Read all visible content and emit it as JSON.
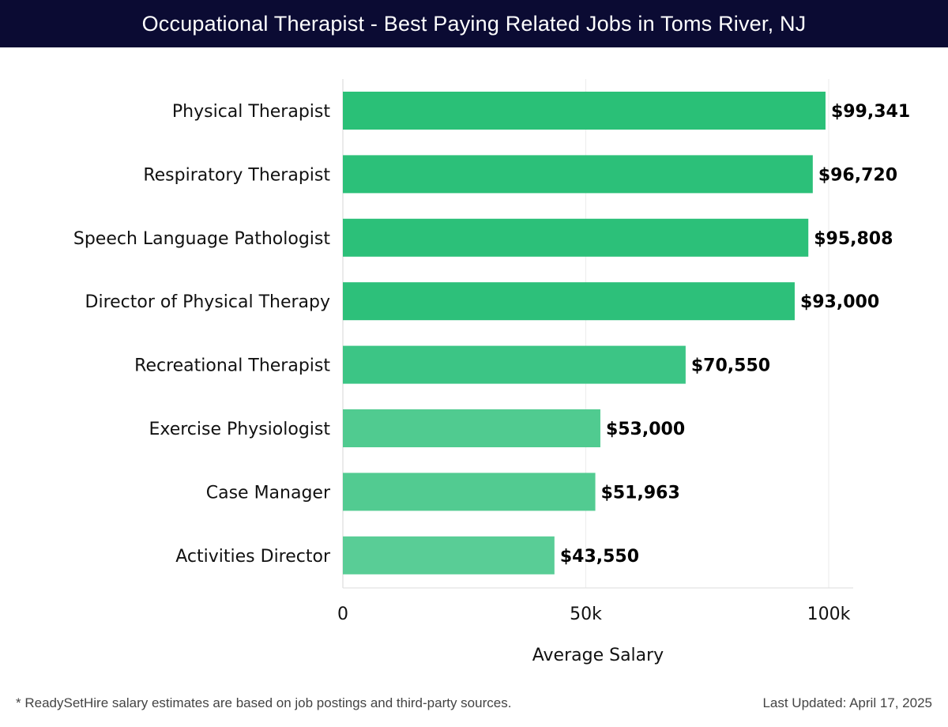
{
  "header": {
    "title": "Occupational Therapist - Best Paying Related Jobs in Toms River, NJ"
  },
  "chart_data": {
    "type": "bar",
    "orientation": "horizontal",
    "title": "Occupational Therapist - Best Paying Related Jobs in Toms River, NJ",
    "xlabel": "Average Salary",
    "ylabel": "",
    "xlim": [
      0,
      105000
    ],
    "xticks": [
      0,
      50000,
      100000
    ],
    "xtick_labels": [
      "0",
      "50k",
      "100k"
    ],
    "grid": true,
    "categories": [
      "Physical Therapist",
      "Respiratory Therapist",
      "Speech Language Pathologist",
      "Director of Physical Therapy",
      "Recreational Therapist",
      "Exercise Physiologist",
      "Case Manager",
      "Activities Director"
    ],
    "values": [
      99341,
      96720,
      95808,
      93000,
      70550,
      53000,
      51963,
      43550
    ],
    "value_labels": [
      "$99,341",
      "$96,720",
      "$95,808",
      "$93,000",
      "$70,550",
      "$53,000",
      "$51,963",
      "$43,550"
    ],
    "bar_colors": [
      "#2ac077",
      "#2cc079",
      "#2cc079",
      "#2dc07a",
      "#3cc585",
      "#50cb90",
      "#52cb91",
      "#59cd96"
    ]
  },
  "footer": {
    "footnote": "* ReadySetHire salary estimates are based on job postings and third-party sources.",
    "updated": "Last Updated: April 17, 2025"
  }
}
